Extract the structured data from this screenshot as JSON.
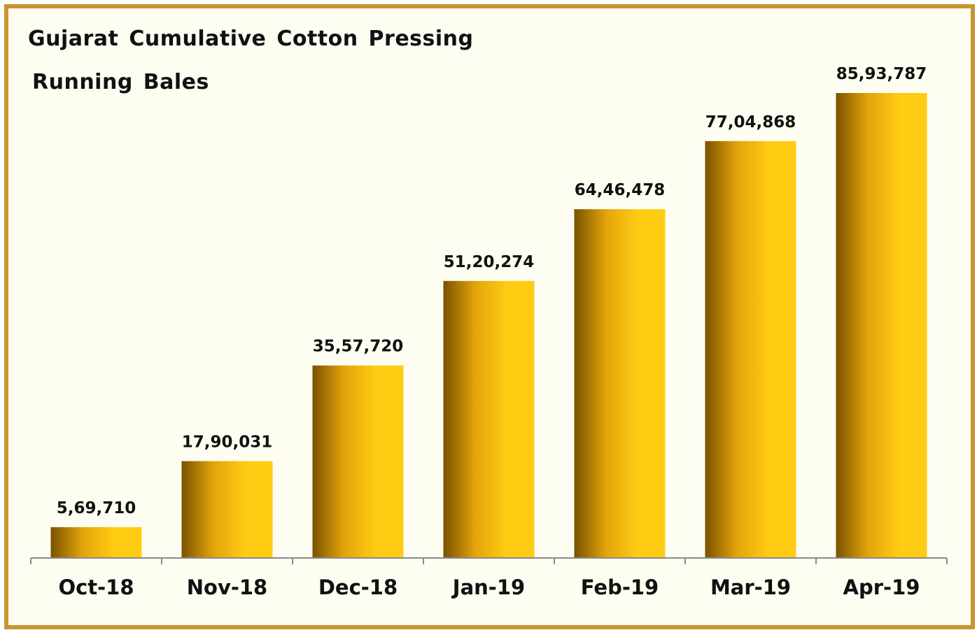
{
  "chart_data": {
    "type": "bar",
    "title": "Gujarat Cumulative Cotton Pressing",
    "subtitle": "Running Bales",
    "categories": [
      "Oct-18",
      "Nov-18",
      "Dec-18",
      "Jan-19",
      "Feb-19",
      "Mar-19",
      "Apr-19"
    ],
    "values": [
      569710,
      1790031,
      3557720,
      5120274,
      6446478,
      7704868,
      8593787
    ],
    "value_labels": [
      "5,69,710",
      "17,90,031",
      "35,57,720",
      "51,20,274",
      "64,46,478",
      "77,04,868",
      "85,93,787"
    ],
    "ylim": [
      0,
      10000000
    ],
    "grid": false,
    "legend": "none",
    "colors": {
      "bar_dark": "#7a5200",
      "bar_mid": "#e3a40a",
      "bar_light": "#ffcc14",
      "frame": "#c8952f",
      "background": "#fefdf2"
    }
  }
}
